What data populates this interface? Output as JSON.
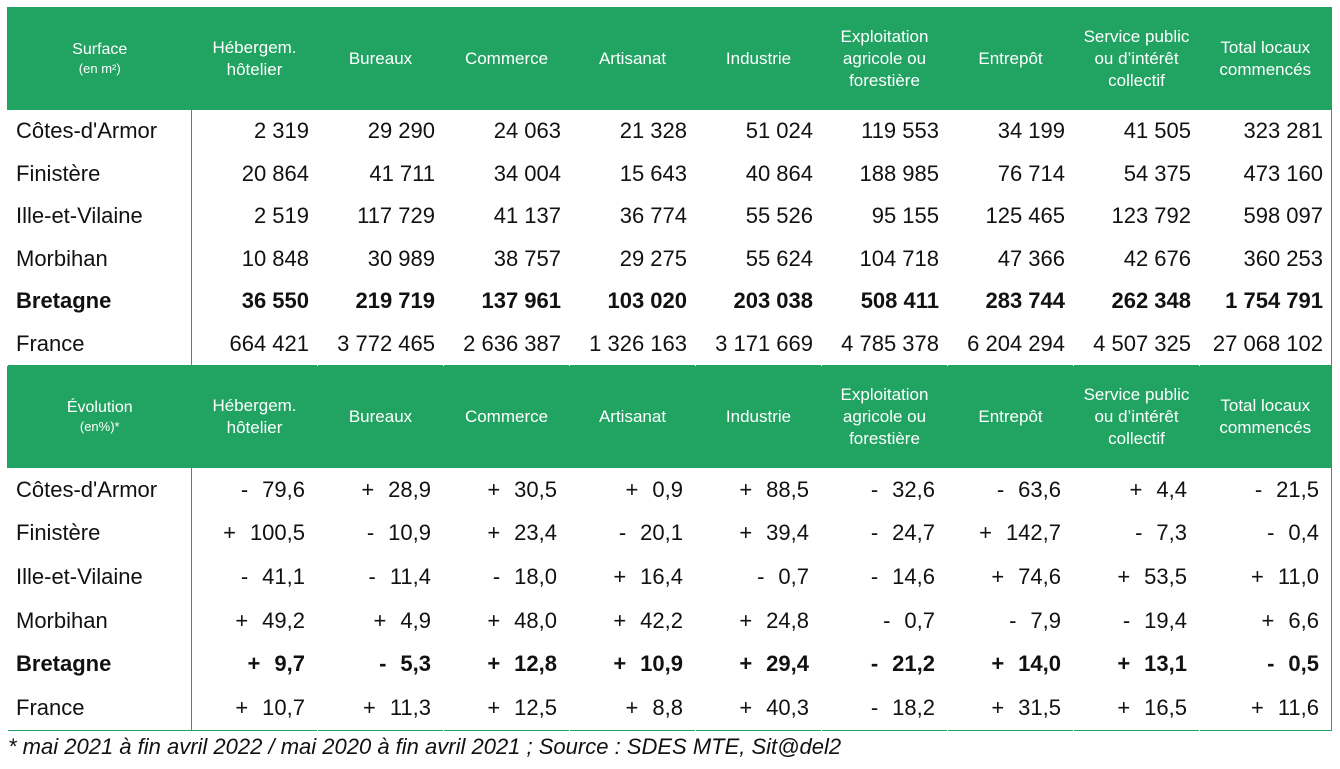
{
  "colors": {
    "header_bg": "#21a362",
    "header_text": "#ffffff"
  },
  "surface_table": {
    "corner_title": "Surface",
    "corner_sub": "(en m²)",
    "headers": [
      "Hébergem. hôtelier",
      "Bureaux",
      "Commerce",
      "Artisanat",
      "Industrie",
      "Exploitation agricole ou forestière",
      "Entrepôt",
      "Service public ou d’intérêt collectif",
      "Total locaux commencés"
    ],
    "rows": [
      {
        "label": "Côtes-d'Armor",
        "values": [
          "2 319",
          "29 290",
          "24 063",
          "21 328",
          "51 024",
          "119 553",
          "34 199",
          "41 505",
          "323 281"
        ]
      },
      {
        "label": "Finistère",
        "values": [
          "20 864",
          "41 711",
          "34 004",
          "15 643",
          "40 864",
          "188 985",
          "76 714",
          "54 375",
          "473 160"
        ]
      },
      {
        "label": "Ille-et-Vilaine",
        "values": [
          "2 519",
          "117 729",
          "41 137",
          "36 774",
          "55 526",
          "95 155",
          "125 465",
          "123 792",
          "598 097"
        ]
      },
      {
        "label": "Morbihan",
        "values": [
          "10 848",
          "30 989",
          "38 757",
          "29 275",
          "55 624",
          "104 718",
          "47 366",
          "42 676",
          "360 253"
        ]
      },
      {
        "label": "Bretagne",
        "values": [
          "36 550",
          "219 719",
          "137 961",
          "103 020",
          "203 038",
          "508 411",
          "283 744",
          "262 348",
          "1 754 791"
        ]
      },
      {
        "label": "France",
        "values": [
          "664 421",
          "3 772 465",
          "2 636 387",
          "1 326 163",
          "3 171 669",
          "4 785 378",
          "6 204 294",
          "4 507 325",
          "27 068 102"
        ]
      }
    ]
  },
  "evolution_table": {
    "corner_title": "Évolution",
    "corner_sub": "(en%)*",
    "headers": [
      "Hébergem. hôtelier",
      "Bureaux",
      "Commerce",
      "Artisanat",
      "Industrie",
      "Exploitation agricole ou forestière",
      "Entrepôt",
      "Service public ou d’intérêt collectif",
      "Total locaux commencés"
    ],
    "rows": [
      {
        "label": "Côtes-d'Armor",
        "values": [
          [
            "-",
            "79,6"
          ],
          [
            "+",
            "28,9"
          ],
          [
            "+",
            "30,5"
          ],
          [
            "+",
            "0,9"
          ],
          [
            "+",
            "88,5"
          ],
          [
            "-",
            "32,6"
          ],
          [
            "-",
            "63,6"
          ],
          [
            "+",
            "4,4"
          ],
          [
            "-",
            "21,5"
          ]
        ]
      },
      {
        "label": "Finistère",
        "values": [
          [
            "+",
            "100,5"
          ],
          [
            "-",
            "10,9"
          ],
          [
            "+",
            "23,4"
          ],
          [
            "-",
            "20,1"
          ],
          [
            "+",
            "39,4"
          ],
          [
            "-",
            "24,7"
          ],
          [
            "+",
            "142,7"
          ],
          [
            "-",
            "7,3"
          ],
          [
            "-",
            "0,4"
          ]
        ]
      },
      {
        "label": "Ille-et-Vilaine",
        "values": [
          [
            "-",
            "41,1"
          ],
          [
            "-",
            "11,4"
          ],
          [
            "-",
            "18,0"
          ],
          [
            "+",
            "16,4"
          ],
          [
            "-",
            "0,7"
          ],
          [
            "-",
            "14,6"
          ],
          [
            "+",
            "74,6"
          ],
          [
            "+",
            "53,5"
          ],
          [
            "+",
            "11,0"
          ]
        ]
      },
      {
        "label": "Morbihan",
        "values": [
          [
            "+",
            "49,2"
          ],
          [
            "+",
            "4,9"
          ],
          [
            "+",
            "48,0"
          ],
          [
            "+",
            "42,2"
          ],
          [
            "+",
            "24,8"
          ],
          [
            "-",
            "0,7"
          ],
          [
            "-",
            "7,9"
          ],
          [
            "-",
            "19,4"
          ],
          [
            "+",
            "6,6"
          ]
        ]
      },
      {
        "label": "Bretagne",
        "values": [
          [
            "+",
            "9,7"
          ],
          [
            "-",
            "5,3"
          ],
          [
            "+",
            "12,8"
          ],
          [
            "+",
            "10,9"
          ],
          [
            "+",
            "29,4"
          ],
          [
            "-",
            "21,2"
          ],
          [
            "+",
            "14,0"
          ],
          [
            "+",
            "13,1"
          ],
          [
            "-",
            "0,5"
          ]
        ]
      },
      {
        "label": "France",
        "values": [
          [
            "+",
            "10,7"
          ],
          [
            "+",
            "11,3"
          ],
          [
            "+",
            "12,5"
          ],
          [
            "+",
            "8,8"
          ],
          [
            "+",
            "40,3"
          ],
          [
            "-",
            "18,2"
          ],
          [
            "+",
            "31,5"
          ],
          [
            "+",
            "16,5"
          ],
          [
            "+",
            "11,6"
          ]
        ]
      }
    ]
  },
  "footnote": "* mai 2021 à fin avril 2022 / mai 2020 à fin avril 2021 ; Source : SDES MTE, Sit@del2"
}
